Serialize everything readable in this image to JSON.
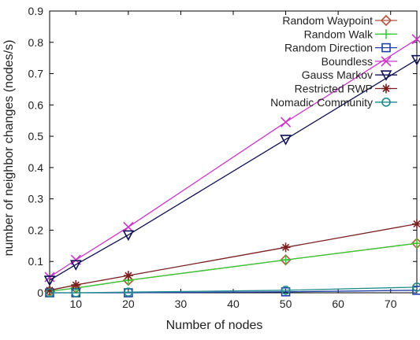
{
  "chart_data": {
    "type": "line",
    "title": "",
    "xlabel": "Number of nodes",
    "ylabel": "number of neighbor changes (nodes/s)",
    "xlim": [
      5,
      75
    ],
    "ylim": [
      0,
      0.9
    ],
    "xticks": [
      10,
      20,
      30,
      40,
      50,
      60,
      70
    ],
    "yticks": [
      0,
      0.1,
      0.2,
      0.3,
      0.4,
      0.5,
      0.6,
      0.7,
      0.8,
      0.9
    ],
    "grid": false,
    "legend_position": "top-right",
    "x": [
      5,
      10,
      20,
      50,
      75
    ],
    "series": [
      {
        "name": "Random Waypoint",
        "color": "#b5523b",
        "marker": "diamond",
        "values": [
          0.005,
          0.015,
          0.04,
          0.105,
          0.158
        ]
      },
      {
        "name": "Random Walk",
        "color": "#33cc33",
        "marker": "plus",
        "values": [
          0.005,
          0.015,
          0.04,
          0.105,
          0.158
        ]
      },
      {
        "name": "Random Direction",
        "color": "#1f3fa8",
        "marker": "square",
        "values": [
          0.0,
          0.0,
          0.0,
          0.003,
          0.008
        ]
      },
      {
        "name": "Boundless",
        "color": "#cc33cc",
        "marker": "x",
        "values": [
          0.05,
          0.105,
          0.21,
          0.545,
          0.81
        ]
      },
      {
        "name": "Gauss Markov",
        "color": "#111155",
        "marker": "triangle-down",
        "values": [
          0.04,
          0.09,
          0.185,
          0.49,
          0.745
        ]
      },
      {
        "name": "Restricted RWP",
        "color": "#7a1f1f",
        "marker": "star",
        "values": [
          0.008,
          0.025,
          0.055,
          0.145,
          0.22
        ]
      },
      {
        "name": "Nomadic Community",
        "color": "#1f8a8a",
        "marker": "circle",
        "values": [
          0.0,
          0.0,
          0.002,
          0.008,
          0.018
        ]
      }
    ]
  }
}
